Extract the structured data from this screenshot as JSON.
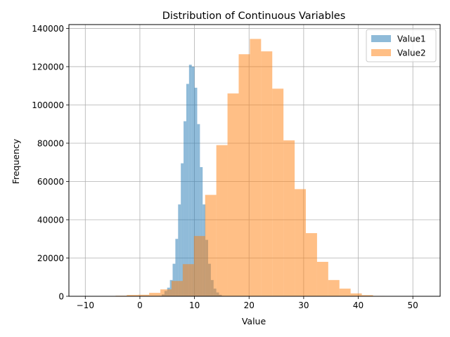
{
  "chart_data": {
    "type": "bar",
    "title": "Distribution of Continuous Variables",
    "xlabel": "Value",
    "ylabel": "Frequency",
    "xlim": [
      -13,
      55
    ],
    "ylim": [
      0,
      142000
    ],
    "xticks": [
      -10,
      0,
      10,
      20,
      30,
      40,
      50
    ],
    "xtick_labels": [
      "−10",
      "0",
      "10",
      "20",
      "30",
      "40",
      "50"
    ],
    "yticks": [
      0,
      20000,
      40000,
      60000,
      80000,
      100000,
      120000,
      140000
    ],
    "ytick_labels": [
      "0",
      "20000",
      "40000",
      "60000",
      "80000",
      "100000",
      "120000",
      "140000"
    ],
    "grid": true,
    "legend_position": "top-right",
    "series": [
      {
        "name": "Value1",
        "color": "#1f77b4",
        "opacity": 0.5,
        "bin_width": 0.5,
        "bins": [
          [
            3.5,
            200
          ],
          [
            4.0,
            1000
          ],
          [
            4.5,
            2800
          ],
          [
            5.0,
            4500
          ],
          [
            5.5,
            8500
          ],
          [
            6.0,
            17000
          ],
          [
            6.5,
            30000
          ],
          [
            7.0,
            48000
          ],
          [
            7.5,
            69500
          ],
          [
            8.0,
            91500
          ],
          [
            8.5,
            111000
          ],
          [
            9.0,
            121000
          ],
          [
            9.5,
            120000
          ],
          [
            10.0,
            109000
          ],
          [
            10.5,
            90000
          ],
          [
            11.0,
            67500
          ],
          [
            11.5,
            48000
          ],
          [
            12.0,
            29500
          ],
          [
            12.5,
            17000
          ],
          [
            13.0,
            8500
          ],
          [
            13.5,
            4000
          ],
          [
            14.0,
            2000
          ],
          [
            14.5,
            800
          ],
          [
            15.0,
            200
          ]
        ]
      },
      {
        "name": "Value2",
        "color": "#ff7f0e",
        "opacity": 0.5,
        "bin_width": 2.05,
        "bins": [
          [
            -6.5,
            100
          ],
          [
            -4.45,
            300
          ],
          [
            -2.4,
            700
          ],
          [
            -0.35,
            800
          ],
          [
            1.7,
            1800
          ],
          [
            3.75,
            3600
          ],
          [
            5.8,
            8000
          ],
          [
            7.85,
            16800
          ],
          [
            9.9,
            31500
          ],
          [
            11.95,
            53000
          ],
          [
            14.0,
            79000
          ],
          [
            16.05,
            106000
          ],
          [
            18.1,
            126500
          ],
          [
            20.15,
            134500
          ],
          [
            22.2,
            128000
          ],
          [
            24.25,
            108500
          ],
          [
            26.3,
            81500
          ],
          [
            28.35,
            56000
          ],
          [
            30.4,
            33000
          ],
          [
            32.45,
            18000
          ],
          [
            34.5,
            8500
          ],
          [
            36.55,
            4000
          ],
          [
            38.6,
            1500
          ],
          [
            40.65,
            600
          ],
          [
            42.7,
            200
          ],
          [
            44.75,
            100
          ],
          [
            46.8,
            50
          ]
        ]
      }
    ]
  }
}
